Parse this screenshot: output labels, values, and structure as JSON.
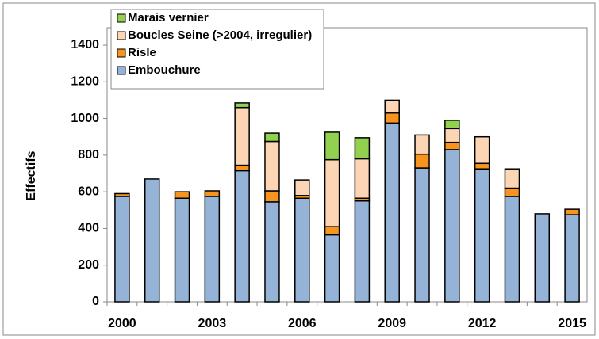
{
  "chart_data": {
    "type": "stacked-bar",
    "y_label": "Effectifs",
    "categories": [
      "2000",
      null,
      null,
      "2003",
      null,
      null,
      "2006",
      null,
      null,
      "2009",
      null,
      null,
      "2012",
      null,
      null,
      "2015"
    ],
    "series": [
      {
        "name": "Embouchure",
        "color": "#95b3d7",
        "values": [
          575,
          670,
          565,
          575,
          715,
          545,
          565,
          365,
          550,
          975,
          730,
          830,
          725,
          575,
          480,
          475
        ]
      },
      {
        "name": "Risle",
        "color": "#f7941d",
        "values": [
          15,
          0,
          35,
          30,
          30,
          60,
          15,
          45,
          15,
          55,
          75,
          40,
          30,
          45,
          0,
          30
        ]
      },
      {
        "name": "Boucles Seine (>2004, irregulier)",
        "color": "#fcd5b4",
        "values": [
          0,
          0,
          0,
          0,
          315,
          270,
          85,
          365,
          215,
          70,
          105,
          75,
          145,
          105,
          0,
          0
        ]
      },
      {
        "name": "Marais vernier",
        "color": "#92d050",
        "values": [
          0,
          0,
          0,
          0,
          25,
          45,
          0,
          150,
          115,
          0,
          0,
          45,
          0,
          0,
          0,
          0
        ]
      }
    ],
    "ylim": [
      0,
      1500
    ],
    "yticks": [
      0,
      200,
      400,
      600,
      800,
      1000,
      1200,
      1400
    ]
  }
}
